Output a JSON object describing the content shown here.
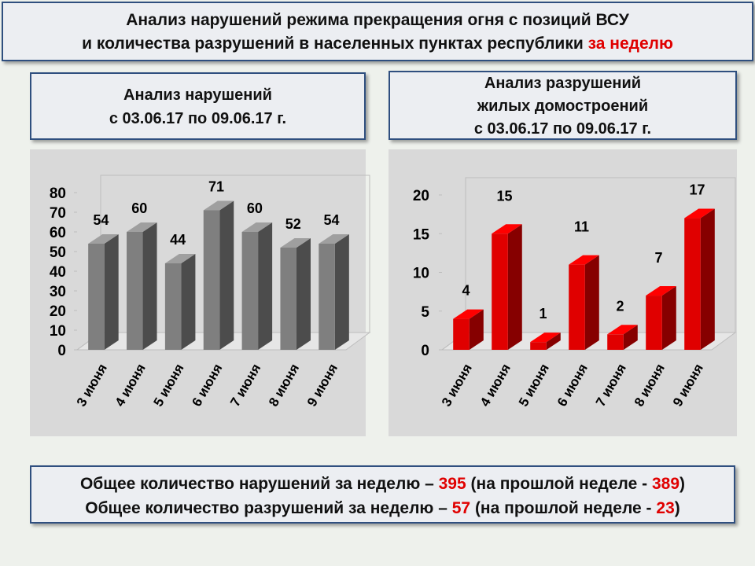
{
  "header": {
    "line1": "Анализ нарушений режима прекращения огня с позиций ВСУ",
    "line2": "и количества разрушений в населенных пунктах республики",
    "highlight": "за неделю"
  },
  "chart_data": [
    {
      "type": "bar",
      "title": "Анализ нарушений",
      "subtitle": "с 03.06.17 по 09.06.17 г.",
      "categories": [
        "3 июня",
        "4 июня",
        "5 июня",
        "6 июня",
        "7 июня",
        "8 июня",
        "9 июня"
      ],
      "values": [
        54,
        60,
        44,
        71,
        60,
        52,
        54
      ],
      "color": "#7f7f7f",
      "ylim": [
        0,
        80
      ],
      "yticks": [
        0,
        10,
        20,
        30,
        40,
        50,
        60,
        70,
        80
      ]
    },
    {
      "type": "bar",
      "title": "Анализ разрушений жилых домостроений",
      "subtitle": "с 03.06.17 по 09.06.17 г.",
      "categories": [
        "3 июня",
        "4 июня",
        "5 июня",
        "6 июня",
        "7 июня",
        "8 июня",
        "9 июня"
      ],
      "values": [
        4,
        15,
        1,
        11,
        2,
        7,
        17
      ],
      "color": "#e00000",
      "ylim": [
        0,
        20
      ],
      "yticks": [
        0,
        5,
        10,
        15,
        20
      ]
    }
  ],
  "summary": {
    "violations_text": "Общее количество нарушений за неделю –",
    "violations": 395,
    "violations_prev_text": "(на прошлой неделе -",
    "violations_prev": 389,
    "destructions_text": "Общее количество разрушений за неделю –",
    "destructions": 57,
    "destructions_prev_text": "(на прошлой неделе -",
    "destructions_prev": 23,
    "close": ")"
  }
}
